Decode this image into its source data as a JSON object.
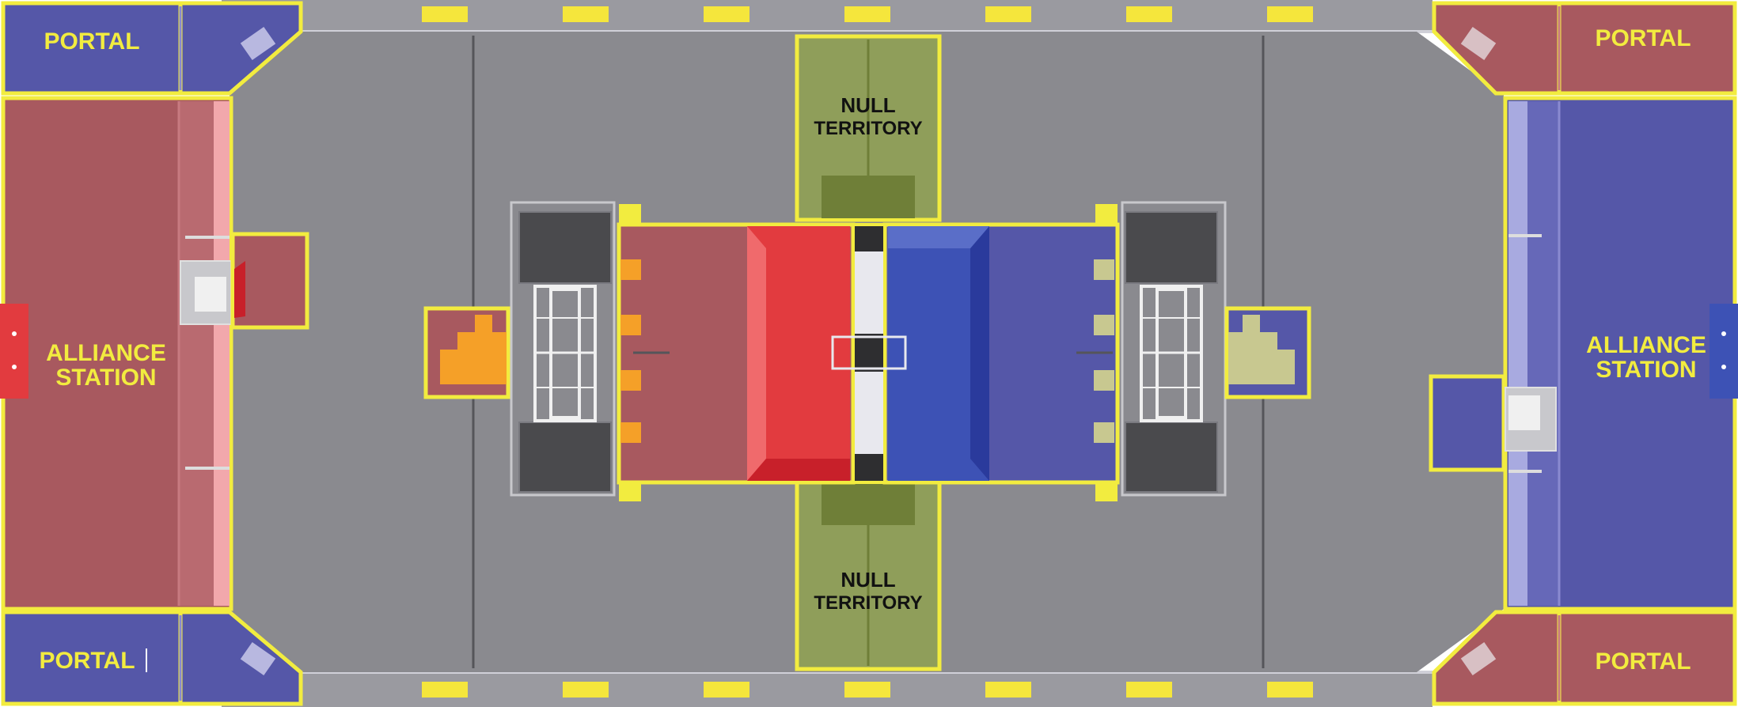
{
  "labels": {
    "portal_top_left": "PORTAL",
    "portal_top_right": "PORTAL",
    "portal_bottom_left": "PORTAL",
    "portal_bottom_right": "PORTAL",
    "alliance_left_line1": "ALLIANCE",
    "alliance_left_line2": "STATION",
    "alliance_right_line1": "ALLIANCE",
    "alliance_right_line2": "STATION",
    "null_top_line1": "NULL",
    "null_top_line2": "TERRITORY",
    "null_bottom_line1": "NULL",
    "null_bottom_line2": "TERRITORY"
  },
  "colors": {
    "floor": "#8a8a8f",
    "wall": "#6f6f75",
    "red_zone": "#a8595f",
    "red_bright": "#e23b3f",
    "blue_zone": "#5557a8",
    "blue_bright": "#3d52b5",
    "null_zone": "#8f9e5a",
    "null_dark": "#6f7f38",
    "outline": "#f2ec3f",
    "marker": "#f5e63c",
    "orange": "#f5a028",
    "platform": "#4a4a4d"
  },
  "icons": [
    "ramp-icon",
    "exchange-icon",
    "scale-icon",
    "switch-icon",
    "power-cube-icon"
  ]
}
